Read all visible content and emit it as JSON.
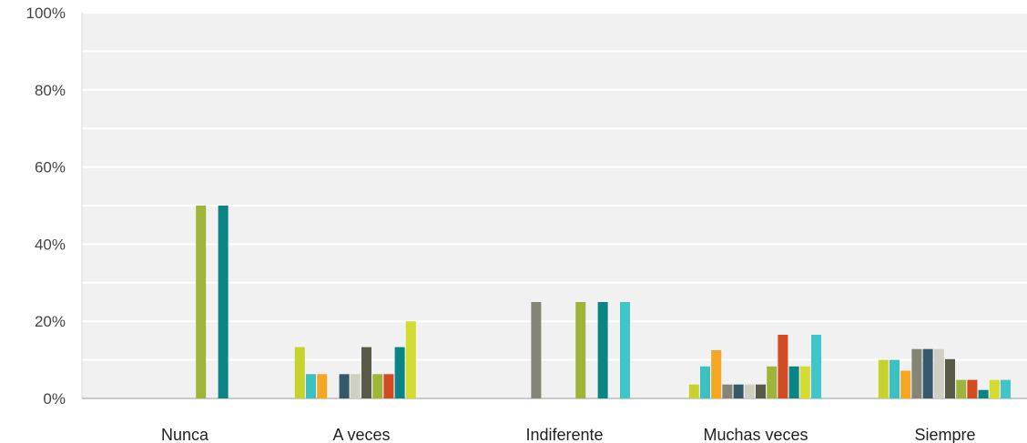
{
  "chart_data": {
    "type": "bar",
    "categories": [
      "Nunca",
      "A veces",
      "Indiferente",
      "Muchas veces",
      "Siempre"
    ],
    "ylim": [
      0,
      100
    ],
    "yticks": [
      "0%",
      "20%",
      "40%",
      "60%",
      "80%",
      "100%"
    ],
    "grid": true,
    "legend": "none",
    "series": [
      {
        "color": "#c8d22c",
        "values": [
          0,
          13.3,
          0,
          3.6,
          10
        ]
      },
      {
        "color": "#3cc1c1",
        "values": [
          0,
          6.3,
          0,
          8.3,
          10
        ]
      },
      {
        "color": "#f5a623",
        "values": [
          0,
          6.3,
          0,
          12.5,
          7.2
        ]
      },
      {
        "color": "#858576",
        "values": [
          0,
          0,
          25,
          3.6,
          12.8
        ]
      },
      {
        "color": "#34596b",
        "values": [
          0,
          6.3,
          0,
          3.6,
          12.8
        ]
      },
      {
        "color": "#cfcfc2",
        "values": [
          0,
          6.3,
          0,
          3.6,
          12.8
        ]
      },
      {
        "color": "#5a5a48",
        "values": [
          0,
          13.3,
          0,
          3.6,
          10.2
        ]
      },
      {
        "color": "#9fb53a",
        "values": [
          50,
          6.3,
          25,
          8.3,
          4.8
        ]
      },
      {
        "color": "#d44a22",
        "values": [
          0,
          6.3,
          0,
          16.5,
          4.8
        ]
      },
      {
        "color": "#0a8484",
        "values": [
          50,
          13.3,
          25,
          8.3,
          2.2
        ]
      },
      {
        "color": "#d4dc30",
        "values": [
          0,
          20,
          0,
          8.3,
          4.8
        ]
      },
      {
        "color": "#40c6c6",
        "values": [
          0,
          0,
          25,
          16.5,
          4.8
        ]
      }
    ]
  }
}
